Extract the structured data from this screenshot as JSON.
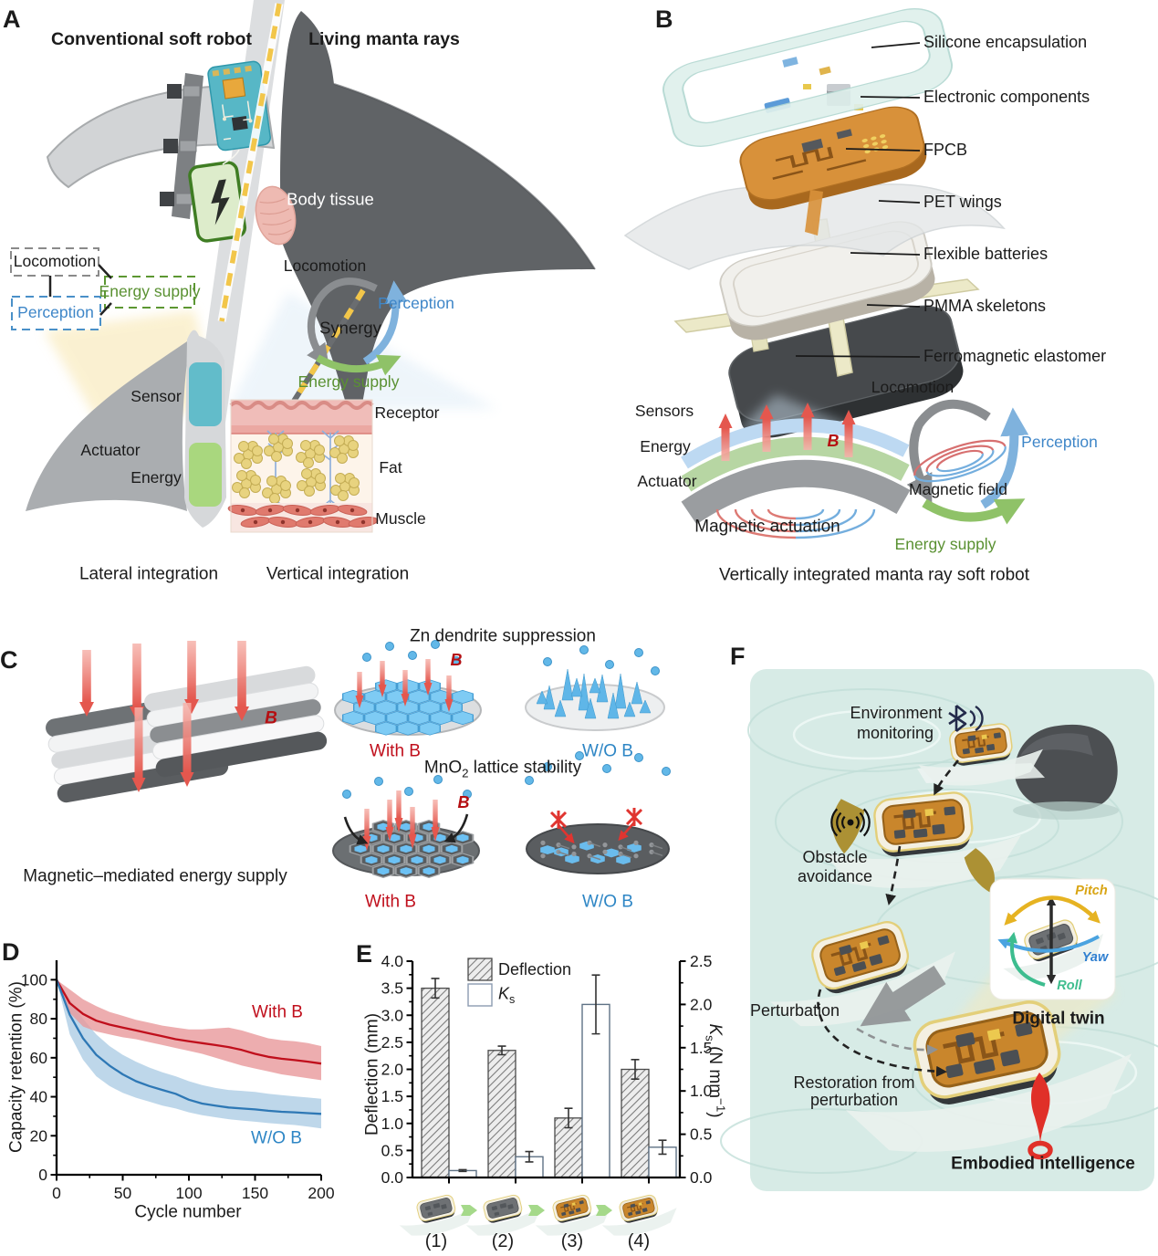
{
  "shared": {
    "b": "B",
    "with_b": "With B",
    "wo_b": "W/O B"
  },
  "panels": {
    "A": {
      "letter": "A",
      "title_left": "Conventional soft robot",
      "title_right": "Living manta rays",
      "body_tissue": "Body tissue",
      "box_locomotion": "Locomotion",
      "box_perception": "Perception",
      "box_energy_supply": "Energy supply",
      "sensor": "Sensor",
      "energy": "Energy",
      "actuator": "Actuator",
      "cycle": {
        "locomotion": "Locomotion",
        "synergy": "Synergy",
        "perception": "Perception",
        "energy_supply": "Energy supply"
      },
      "tissue": {
        "receptor": "Receptor",
        "fat": "Fat",
        "muscle": "Muscle"
      },
      "caption_left": "Lateral integration",
      "caption_right": "Vertical integration"
    },
    "B": {
      "letter": "B",
      "layers": [
        "Silicone encapsulation",
        "Electronic components",
        "FPCB",
        "PET wings",
        "Flexible batteries",
        "PMMA skeletons",
        "Ferromagnetic elastomer"
      ],
      "stack": {
        "sensors": "Sensors",
        "energy": "Energy",
        "actuator": "Actuator",
        "caption": "Magnetic actuation"
      },
      "cycle": {
        "locomotion": "Locomotion",
        "perception": "Perception",
        "magnetic_field": "Magnetic field",
        "energy_supply": "Energy supply"
      },
      "caption": "Vertically integrated manta ray soft robot"
    },
    "C": {
      "letter": "C",
      "caption_left": "Magnetic–mediated energy supply",
      "zn_title": "Zn dendrite suppression",
      "mno2_pre": "MnO",
      "mno2_sub": "2",
      "mno2_post": " lattice stability"
    },
    "D": {
      "letter": "D"
    },
    "E": {
      "letter": "E",
      "legend_k": "K",
      "legend_k_sub": "s",
      "right_label_pre": " (N mm",
      "right_label_sup": "−1",
      "right_label_post": ")"
    },
    "F": {
      "letter": "F",
      "env1": "Environment",
      "env2": "monitoring",
      "obs1": "Obstacle",
      "obs2": "avoidance",
      "perturbation": "Perturbation",
      "rest1": "Restoration from",
      "rest2": "perturbation",
      "digital_twin": "Digital twin",
      "embodied": "Embodied intelligence",
      "pitch": "Pitch",
      "yaw": "Yaw",
      "roll": "Roll"
    }
  },
  "chart_data": [
    {
      "id": "D",
      "type": "line",
      "title": "",
      "xlabel": "Cycle number",
      "ylabel": "Capacity retention (%)",
      "xlim": [
        0,
        200
      ],
      "ylim": [
        0,
        110
      ],
      "xticks": [
        0,
        50,
        100,
        150,
        200
      ],
      "yticks": [
        0,
        20,
        40,
        60,
        80,
        100
      ],
      "x": [
        0,
        10,
        20,
        30,
        40,
        50,
        60,
        70,
        80,
        90,
        100,
        110,
        120,
        130,
        140,
        150,
        160,
        170,
        180,
        190,
        200
      ],
      "series": [
        {
          "name": "With B",
          "color": "#c00f1c",
          "band_color": "#e9999b",
          "values": [
            100,
            88,
            82.5,
            79,
            77,
            75.5,
            74,
            72.5,
            71,
            69.5,
            68.5,
            67.5,
            66.5,
            65.5,
            64,
            62,
            60.5,
            59.5,
            58.8,
            58,
            57
          ],
          "upper": [
            100,
            95,
            90,
            86.5,
            83.5,
            81.5,
            79.5,
            78,
            76.5,
            75.5,
            74.5,
            74.5,
            75,
            75.5,
            74,
            72,
            70,
            69,
            68.5,
            67.5,
            66
          ],
          "lower": [
            100,
            83,
            76,
            73.5,
            72,
            70.5,
            69.5,
            68,
            66.5,
            65,
            63.5,
            62,
            60,
            58,
            56,
            54.5,
            53,
            51.5,
            50.5,
            49.5,
            48.5
          ]
        },
        {
          "name": "W/O B",
          "color": "#2e78b5",
          "band_color": "#aecde5",
          "values": [
            100,
            82,
            70,
            61.5,
            56,
            51.5,
            48,
            45.5,
            43.5,
            41.5,
            38.5,
            36.5,
            35.5,
            34.5,
            34,
            33.5,
            32.8,
            32.3,
            32,
            31.6,
            31.2
          ],
          "upper": [
            100,
            90,
            80,
            72,
            66,
            61.5,
            58,
            55,
            52.5,
            50.5,
            48,
            46,
            44.5,
            43.5,
            43,
            42.5,
            41.5,
            40.8,
            40.2,
            39.6,
            39
          ],
          "lower": [
            100,
            72,
            59,
            50.5,
            45.5,
            42,
            39.5,
            37.5,
            35.5,
            34,
            32,
            30.5,
            29.5,
            28.5,
            27.8,
            27.2,
            26.5,
            26,
            25.5,
            24.7,
            23.8
          ]
        }
      ]
    },
    {
      "id": "E",
      "type": "bar",
      "categories": [
        "(1)",
        "(2)",
        "(3)",
        "(4)"
      ],
      "left_axis": {
        "label": "Deflection (mm)",
        "lim": [
          0,
          4
        ],
        "ticks": [
          0,
          0.5,
          1,
          1.5,
          2,
          2.5,
          3,
          3.5,
          4
        ]
      },
      "right_axis": {
        "label": "Ks (N mm-1)",
        "lim": [
          0,
          2.5
        ],
        "ticks": [
          0,
          0.5,
          1,
          1.5,
          2,
          2.5
        ]
      },
      "series": [
        {
          "name": "Deflection",
          "axis": "left",
          "style": "hatched",
          "values": [
            3.5,
            2.35,
            1.1,
            2.0
          ],
          "errors": [
            0.18,
            0.08,
            0.18,
            0.18
          ]
        },
        {
          "name": "Ks",
          "axis": "right",
          "style": "open",
          "values": [
            0.08,
            0.24,
            2.0,
            0.35
          ],
          "errors": [
            0.01,
            0.06,
            0.34,
            0.08
          ]
        }
      ]
    }
  ]
}
